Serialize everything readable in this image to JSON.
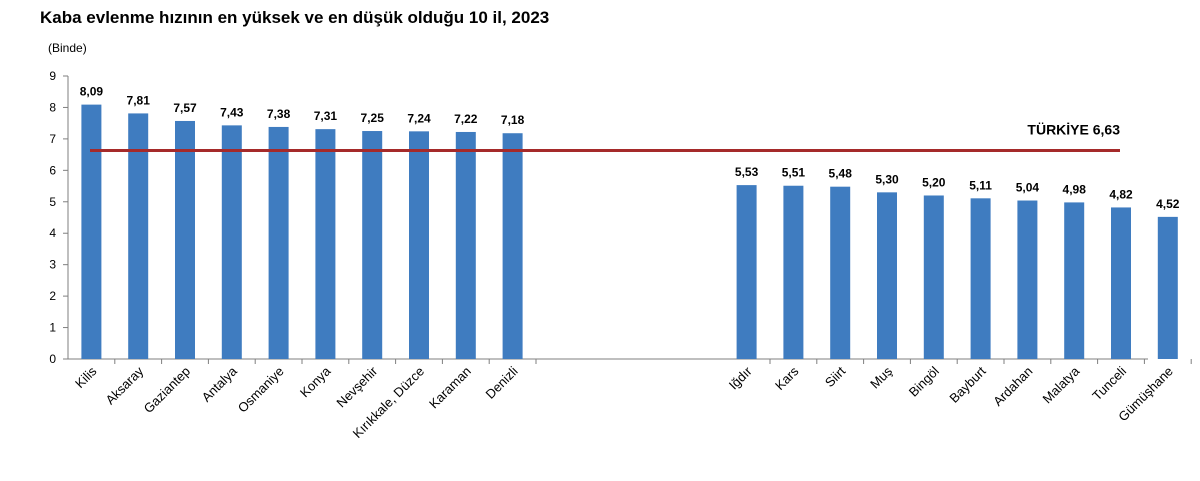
{
  "chart_data": {
    "type": "bar",
    "title": "Kaba evlenme hızının en yüksek ve en düşük olduğu 10 il, 2023",
    "unit_label": "(Binde)",
    "ylim": [
      0,
      9
    ],
    "yticks": [
      "0",
      "1",
      "2",
      "3",
      "4",
      "5",
      "6",
      "7",
      "8",
      "9"
    ],
    "bar_color": "#3F7CC0",
    "reference_line": {
      "label": "TÜRKİYE 6,63",
      "value": 6.63,
      "color": "#A52A2A"
    },
    "groups": [
      {
        "categories": [
          "Kilis",
          "Aksaray",
          "Gaziantep",
          "Antalya",
          "Osmaniye",
          "Konya",
          "Nevşehir",
          "Kırıkkale, Düzce",
          "Karaman",
          "Denizli"
        ],
        "values": [
          8.09,
          7.81,
          7.57,
          7.43,
          7.38,
          7.31,
          7.25,
          7.24,
          7.22,
          7.18
        ],
        "labels": [
          "8,09",
          "7,81",
          "7,57",
          "7,43",
          "7,38",
          "7,31",
          "7,25",
          "7,24",
          "7,22",
          "7,18"
        ]
      },
      {
        "categories": [
          "Iğdır",
          "Kars",
          "Siirt",
          "Muş",
          "Bingöl",
          "Bayburt",
          "Ardahan",
          "Malatya",
          "Tunceli",
          "Gümüşhane"
        ],
        "values": [
          5.53,
          5.51,
          5.48,
          5.3,
          5.2,
          5.11,
          5.04,
          4.98,
          4.82,
          4.52
        ],
        "labels": [
          "5,53",
          "5,51",
          "5,48",
          "5,30",
          "5,20",
          "5,11",
          "5,04",
          "4,98",
          "4,82",
          "4,52"
        ]
      }
    ]
  }
}
